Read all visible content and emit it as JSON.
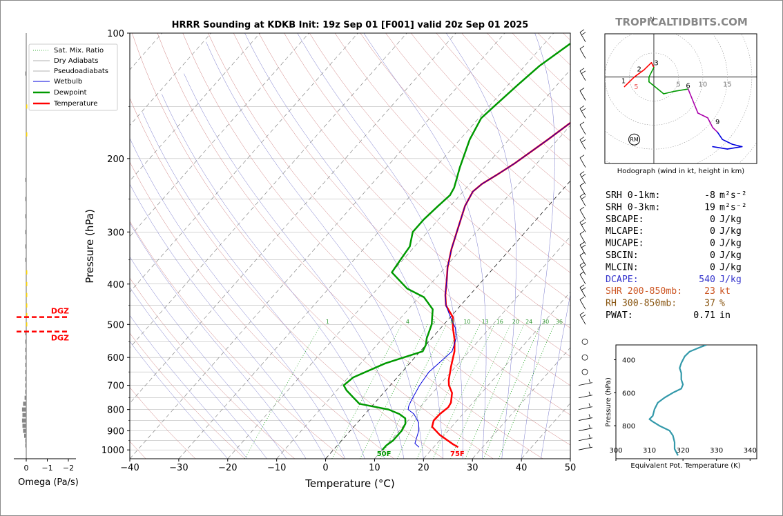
{
  "brand": "TROPICALTIDBITS.COM",
  "chart_data": [
    {
      "type": "line",
      "title": "HRRR Sounding at KDKB Init: 19z Sep 01 [F001] valid 20z Sep 01 2025",
      "xlabel": "Temperature (°C)",
      "ylabel": "Pressure (hPa)",
      "xlim": [
        -40,
        50
      ],
      "ylim": [
        1050,
        100
      ],
      "y_scale": "log",
      "xticks": [
        -40,
        -30,
        -20,
        -10,
        0,
        10,
        20,
        30,
        40,
        50
      ],
      "xtick_labels": [
        "−40",
        "−30",
        "−20",
        "−10",
        "0",
        "10",
        "20",
        "30",
        "40",
        "50"
      ],
      "yticks": [
        100,
        200,
        300,
        400,
        500,
        600,
        700,
        800,
        900,
        1000
      ],
      "mixing_ratio_labels": [
        "1",
        "4",
        "6",
        "8",
        "10",
        "13",
        "16",
        "20",
        "24",
        "30",
        "36"
      ],
      "legend_position": "top-left",
      "legend": [
        "Sat. Mix. Ratio",
        "Dry Adiabats",
        "Pseudoadiabats",
        "Wetbulb",
        "Dewpoint",
        "Temperature"
      ],
      "series": [
        {
          "name": "Temperature",
          "color": "#ff0000",
          "points": [
            [
              25,
              985
            ],
            [
              23.5,
              970
            ],
            [
              19,
              920
            ],
            [
              16,
              880
            ],
            [
              15.2,
              850
            ],
            [
              15.3,
              820
            ],
            [
              15.8,
              790
            ],
            [
              15.5,
              770
            ],
            [
              14,
              730
            ],
            [
              12,
              700
            ],
            [
              11,
              680
            ],
            [
              9,
              630
            ],
            [
              7,
              580
            ],
            [
              5,
              545
            ],
            [
              2.5,
              510
            ],
            [
              0.5,
              480
            ],
            [
              -3,
              450
            ],
            [
              -5,
              425
            ],
            [
              -7.5,
              390
            ],
            [
              -9.5,
              365
            ],
            [
              -12,
              330
            ],
            [
              -14,
              300
            ],
            [
              -17,
              260
            ],
            [
              -18,
              240
            ],
            [
              -17.5,
              230
            ],
            [
              -16,
              218
            ],
            [
              -14.5,
              205
            ],
            [
              -12,
              180
            ],
            [
              -10,
              160
            ],
            [
              -8,
              145
            ],
            [
              -4,
              125
            ],
            [
              0.5,
              104
            ],
            [
              1,
              102
            ]
          ]
        },
        {
          "name": "Dewpoint",
          "color": "#009900",
          "points": [
            [
              10,
              1000
            ],
            [
              10,
              975
            ],
            [
              10.5,
              950
            ],
            [
              10.5,
              900
            ],
            [
              10,
              865
            ],
            [
              9,
              840
            ],
            [
              7,
              820
            ],
            [
              4,
              800
            ],
            [
              -3,
              775
            ],
            [
              -8,
              720
            ],
            [
              -9.5,
              700
            ],
            [
              -9,
              670
            ],
            [
              -5,
              620
            ],
            [
              0.5,
              580
            ],
            [
              0,
              560
            ],
            [
              -1,
              540
            ],
            [
              -2.5,
              500
            ],
            [
              -5,
              460
            ],
            [
              -9,
              430
            ],
            [
              -14,
              410
            ],
            [
              -20,
              375
            ],
            [
              -20.5,
              350
            ],
            [
              -21,
              325
            ],
            [
              -23,
              300
            ],
            [
              -23,
              280
            ],
            [
              -22.5,
              260
            ],
            [
              -22,
              245
            ],
            [
              -22.5,
              235
            ],
            [
              -25,
              210
            ],
            [
              -28,
              180
            ],
            [
              -29.5,
              160
            ],
            [
              -29,
              150
            ],
            [
              -28,
              133
            ],
            [
              -27,
              120
            ],
            [
              -24,
              102
            ]
          ]
        },
        {
          "name": "Wetbulb",
          "color": "#0000dd",
          "points": [
            [
              17,
              985
            ],
            [
              15.5,
              965
            ],
            [
              14,
              900
            ],
            [
              12.5,
              860
            ],
            [
              10,
              820
            ],
            [
              8,
              800
            ],
            [
              7.5,
              785
            ],
            [
              7,
              760
            ],
            [
              6,
              700
            ],
            [
              5.5,
              650
            ],
            [
              6.5,
              580
            ],
            [
              5,
              540
            ],
            [
              3,
              510
            ],
            [
              0,
              480
            ],
            [
              -3,
              450
            ],
            [
              -5,
              425
            ],
            [
              -7.5,
              390
            ],
            [
              -9.5,
              365
            ],
            [
              -12,
              330
            ],
            [
              -14,
              300
            ],
            [
              -17,
              260
            ],
            [
              -18,
              240
            ],
            [
              -17.5,
              230
            ],
            [
              -16,
              218
            ],
            [
              -14.5,
              205
            ],
            [
              -12,
              180
            ],
            [
              -10,
              160
            ],
            [
              -8,
              145
            ],
            [
              -4,
              125
            ],
            [
              0.5,
              104
            ]
          ]
        }
      ],
      "annotations": [
        {
          "text": "50F",
          "x": 10,
          "p": 1000,
          "color": "#009900"
        },
        {
          "text": "75F",
          "x": 25,
          "p": 1000,
          "color": "#ff0000"
        }
      ]
    },
    {
      "type": "bar",
      "xlabel": "Omega (Pa/s)",
      "xticks": [
        0,
        -1,
        -2
      ],
      "xtick_labels": [
        "0",
        "−1",
        "−2"
      ],
      "dgz_label": "DGZ",
      "dgz_top_hpa": 480,
      "dgz_bottom_hpa": 520,
      "levels_hpa": [
        125,
        150,
        175,
        225,
        250,
        275,
        300,
        325,
        350,
        375,
        400,
        425,
        450,
        475,
        500,
        525,
        550,
        575,
        600,
        625,
        650,
        675,
        700,
        725,
        750,
        775,
        800,
        825,
        850,
        875,
        900,
        925,
        950,
        975
      ],
      "values": [
        -0.02,
        0.05,
        0.05,
        -0.05,
        -0.05,
        -0.05,
        -0.03,
        -0.03,
        -0.03,
        0.02,
        0.02,
        0.02,
        0.02,
        0.02,
        0.02,
        -0.03,
        -0.03,
        -0.05,
        -0.05,
        -0.05,
        -0.03,
        -0.03,
        -0.03,
        -0.05,
        -0.08,
        -0.15,
        -0.2,
        -0.18,
        -0.2,
        -0.18,
        -0.15,
        -0.1,
        -0.05,
        -0.03
      ],
      "colors": [
        "#888888",
        "#ffd700",
        "#ffd700",
        "#888888",
        "#888888",
        "#888888",
        "#888888",
        "#888888",
        "#888888",
        "#ffd700",
        "#ffd700",
        "#ffd700",
        "#ffd700",
        "#ffd700",
        "#ffd700",
        "#888888",
        "#888888",
        "#888888",
        "#888888",
        "#888888",
        "#888888",
        "#888888",
        "#888888",
        "#888888",
        "#888888",
        "#888888",
        "#888888",
        "#888888",
        "#888888",
        "#888888",
        "#888888",
        "#888888",
        "#888888",
        "#888888"
      ]
    },
    {
      "type": "line",
      "title": "Hodograph (wind in kt, height in km)",
      "north_label": "N",
      "ring_labels": [
        "5",
        "10",
        "15"
      ],
      "xlim": [
        -10,
        21
      ],
      "ylim": [
        -18,
        9
      ],
      "storm_motion_label": "RM",
      "storm_motion": [
        -4,
        -13
      ],
      "points": [
        [
          -6,
          -2
        ],
        [
          -4,
          0
        ],
        [
          -2,
          1.5
        ],
        [
          -0.5,
          3
        ],
        [
          0,
          2
        ],
        [
          -1,
          0
        ],
        [
          -1,
          -1
        ],
        [
          2,
          -3.5
        ],
        [
          4,
          -3
        ],
        [
          7,
          -2.5
        ],
        [
          8,
          -5
        ],
        [
          9,
          -7.5
        ],
        [
          10,
          -8
        ],
        [
          11,
          -8.5
        ],
        [
          12,
          -10.5
        ],
        [
          13,
          -11.5
        ],
        [
          14,
          -13
        ],
        [
          16,
          -14
        ],
        [
          18,
          -14.5
        ],
        [
          15,
          -15
        ],
        [
          12,
          -14.5
        ]
      ],
      "segment_colors": [
        "#ff0000",
        "#ff0000",
        "#ff0000",
        "#ff0000",
        "#009900",
        "#009900",
        "#009900",
        "#009900",
        "#009900",
        "#aa00aa",
        "#aa00aa",
        "#aa00aa",
        "#aa00aa",
        "#aa00aa",
        "#aa00aa",
        "#0000dd",
        "#0000dd",
        "#0000dd",
        "#0000dd",
        "#0000dd"
      ],
      "height_labels": [
        {
          "text": "1",
          "x": -6.2,
          "y": -1.3
        },
        {
          "text": "2",
          "x": -3,
          "y": 1.2
        },
        {
          "text": "3",
          "x": 0.5,
          "y": 2.5
        },
        {
          "text": "6",
          "x": 7,
          "y": -2.3
        },
        {
          "text": "9",
          "x": 13,
          "y": -9.8
        }
      ],
      "extra_ring_label": "5"
    },
    {
      "type": "line",
      "xlabel": "Equivalent Pot. Temperature (K)",
      "ylabel": "Pressure (hPa)",
      "xlim": [
        300,
        342
      ],
      "ylim": [
        1000,
        310
      ],
      "xticks": [
        300,
        310,
        320,
        330,
        340
      ],
      "yticks": [
        400,
        600,
        800
      ],
      "color": "#3399aa",
      "points": [
        [
          327,
          310
        ],
        [
          325,
          325
        ],
        [
          322,
          350
        ],
        [
          320.5,
          380
        ],
        [
          319.5,
          420
        ],
        [
          319,
          450
        ],
        [
          319.5,
          480
        ],
        [
          319.5,
          520
        ],
        [
          320,
          550
        ],
        [
          319.5,
          575
        ],
        [
          317,
          600
        ],
        [
          314.5,
          630
        ],
        [
          312.5,
          660
        ],
        [
          311.5,
          700
        ],
        [
          311,
          740
        ],
        [
          310,
          760
        ],
        [
          311,
          775
        ],
        [
          313,
          800
        ],
        [
          316,
          830
        ],
        [
          317,
          860
        ],
        [
          317.5,
          900
        ],
        [
          317.5,
          940
        ],
        [
          318,
          960
        ],
        [
          318.5,
          980
        ]
      ]
    }
  ],
  "stats": {
    "rows": [
      {
        "label": "SRH 0-1km:",
        "value": "-8",
        "unit": "m²s⁻²",
        "color": "#000000"
      },
      {
        "label": "SRH 0-3km:",
        "value": "19",
        "unit": "m²s⁻²",
        "color": "#000000"
      },
      {
        "label": "SBCAPE:",
        "value": "0",
        "unit": "J/kg",
        "color": "#000000"
      },
      {
        "label": "MLCAPE:",
        "value": "0",
        "unit": "J/kg",
        "color": "#000000"
      },
      {
        "label": "MUCAPE:",
        "value": "0",
        "unit": "J/kg",
        "color": "#000000"
      },
      {
        "label": "SBCIN:",
        "value": "0",
        "unit": "J/kg",
        "color": "#000000"
      },
      {
        "label": "MLCIN:",
        "value": "0",
        "unit": "J/kg",
        "color": "#000000"
      },
      {
        "label": "DCAPE:",
        "value": "540",
        "unit": "J/kg",
        "color": "#3333cc"
      },
      {
        "label": "SHR 200-850mb:",
        "value": "23",
        "unit": "kt",
        "color": "#cc5522"
      },
      {
        "label": "RH 300-850mb:",
        "value": "37",
        "unit": "%",
        "color": "#885511"
      },
      {
        "label": "PWAT:",
        "value": "0.71",
        "unit": "in",
        "color": "#000000"
      }
    ]
  }
}
